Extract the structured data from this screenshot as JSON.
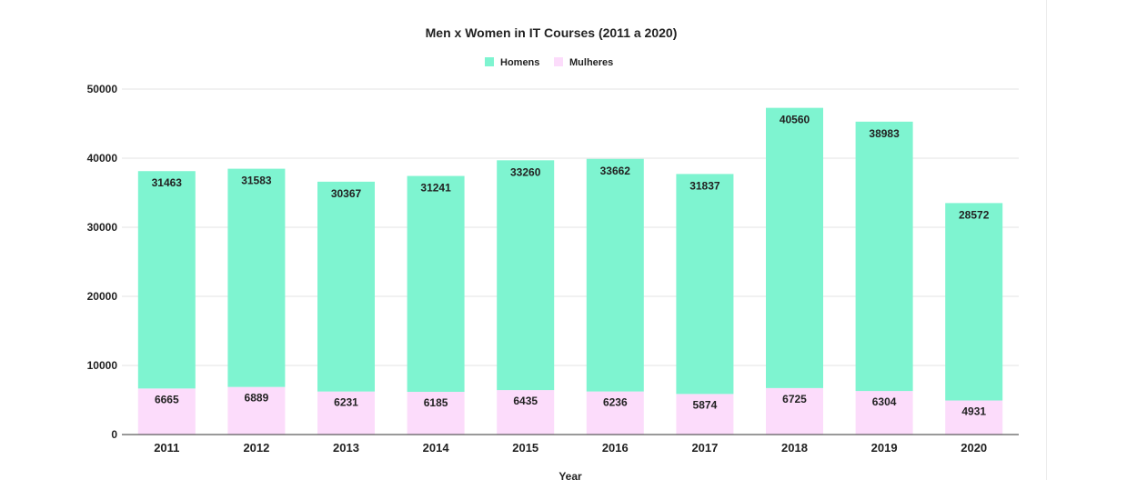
{
  "chart_data": {
    "type": "bar",
    "stacked": true,
    "title": "Men x Women in IT Courses (2011 a 2020)",
    "xlabel": "Year",
    "ylabel": "",
    "ylim": [
      0,
      50000
    ],
    "yticks": [
      "0",
      "10000",
      "20000",
      "30000",
      "40000",
      "50000"
    ],
    "grid": true,
    "legend_position": "top-center",
    "categories": [
      "2011",
      "2012",
      "2013",
      "2014",
      "2015",
      "2016",
      "2017",
      "2018",
      "2019",
      "2020"
    ],
    "series": [
      {
        "name": "Mulheres",
        "color": "#fcdcfb",
        "values": [
          6665,
          6889,
          6231,
          6185,
          6435,
          6236,
          5874,
          6725,
          6304,
          4931
        ]
      },
      {
        "name": "Homens",
        "color": "#7ef4d0",
        "values": [
          31463,
          31583,
          30367,
          31241,
          33260,
          33662,
          31837,
          40560,
          38983,
          28572
        ]
      }
    ],
    "legend_order": [
      "Homens",
      "Mulheres"
    ]
  }
}
